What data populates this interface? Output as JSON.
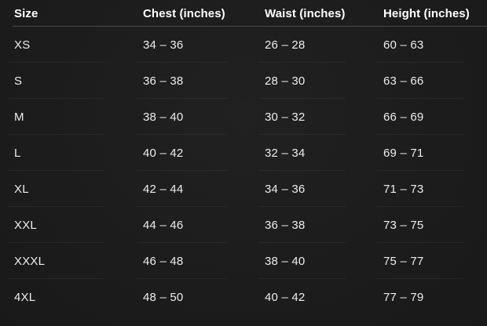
{
  "table": {
    "name": "apparel-size-chart",
    "columns": [
      {
        "key": "size",
        "label": "Size"
      },
      {
        "key": "chest",
        "label": "Chest (inches)"
      },
      {
        "key": "waist",
        "label": "Waist (inches)"
      },
      {
        "key": "height",
        "label": "Height (inches)"
      }
    ],
    "rows": [
      {
        "size": "XS",
        "chest": "34 – 36",
        "waist": "26 – 28",
        "height": "60 – 63"
      },
      {
        "size": "S",
        "chest": "36 – 38",
        "waist": "28 – 30",
        "height": "63 – 66"
      },
      {
        "size": "M",
        "chest": "38 – 40",
        "waist": "30 – 32",
        "height": "66 – 69"
      },
      {
        "size": "L",
        "chest": "40 – 42",
        "waist": "32 – 34",
        "height": "69 – 71"
      },
      {
        "size": "XL",
        "chest": "42 – 44",
        "waist": "34 – 36",
        "height": "71 – 73"
      },
      {
        "size": "XXL",
        "chest": "44 – 46",
        "waist": "36 – 38",
        "height": "73 – 75"
      },
      {
        "size": "XXXL",
        "chest": "46 – 48",
        "waist": "38 – 40",
        "height": "75 – 77"
      },
      {
        "size": "4XL",
        "chest": "48 – 50",
        "waist": "40 – 42",
        "height": "77 – 79"
      }
    ]
  },
  "colors": {
    "background": "#1d1d1d",
    "header_text": "#ffffff",
    "body_text": "#ededed",
    "header_divider": "#474747",
    "row_divider": "#2b2b2b"
  }
}
